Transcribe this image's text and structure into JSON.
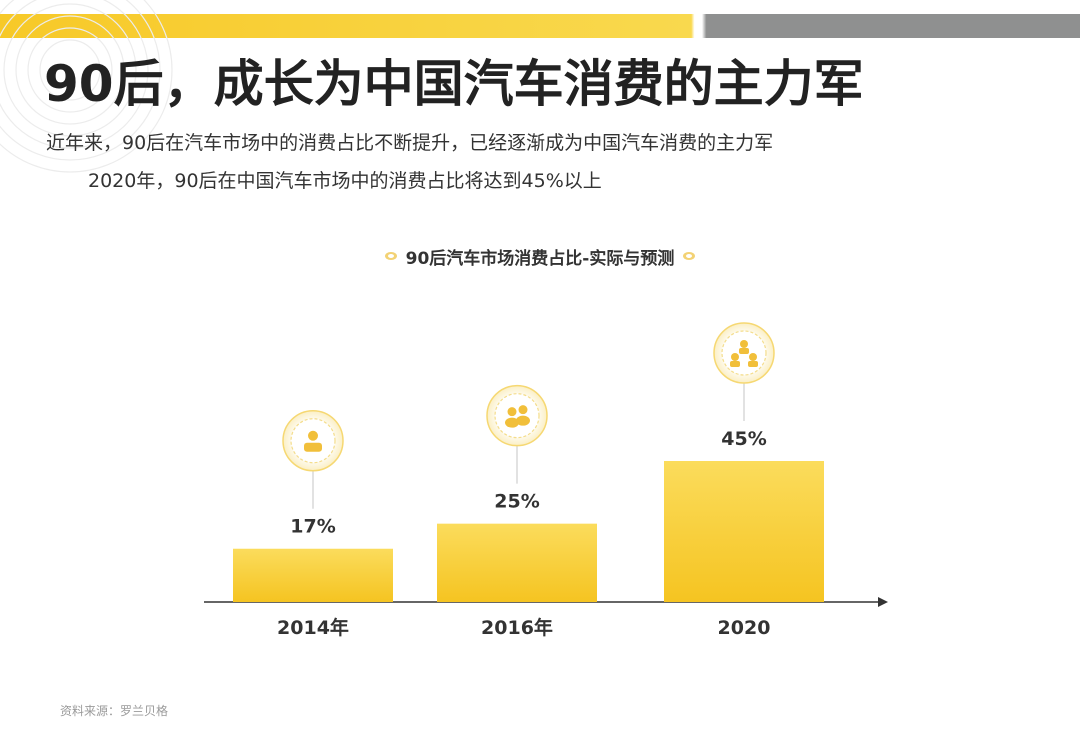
{
  "slide": {
    "title": "90后，成长为中国汽车消费的主力军",
    "subtitle_line1": "近年来，90后在汽车市场中的消费占比不断提升，已经逐渐成为中国汽车消费的主力军",
    "subtitle_line2": "2020年，90后在中国汽车市场中的消费占比将达到45%以上",
    "source": "资料来源：罗兰贝格",
    "colors": {
      "accent": "#f7c928",
      "bar": "#f8d143",
      "band_gray": "#8f9090"
    }
  },
  "chart_data": {
    "type": "bar",
    "title": "90后汽车市场消费占比-实际与预测",
    "categories": [
      "2014年",
      "2016年",
      "2020"
    ],
    "values": [
      17,
      25,
      45
    ],
    "value_labels": [
      "17%",
      "25%",
      "45%"
    ],
    "icons": [
      "person-icon",
      "people-icon",
      "group-icon"
    ],
    "ylim": [
      0,
      52
    ],
    "grid": false,
    "xlabel": "",
    "ylabel": ""
  }
}
